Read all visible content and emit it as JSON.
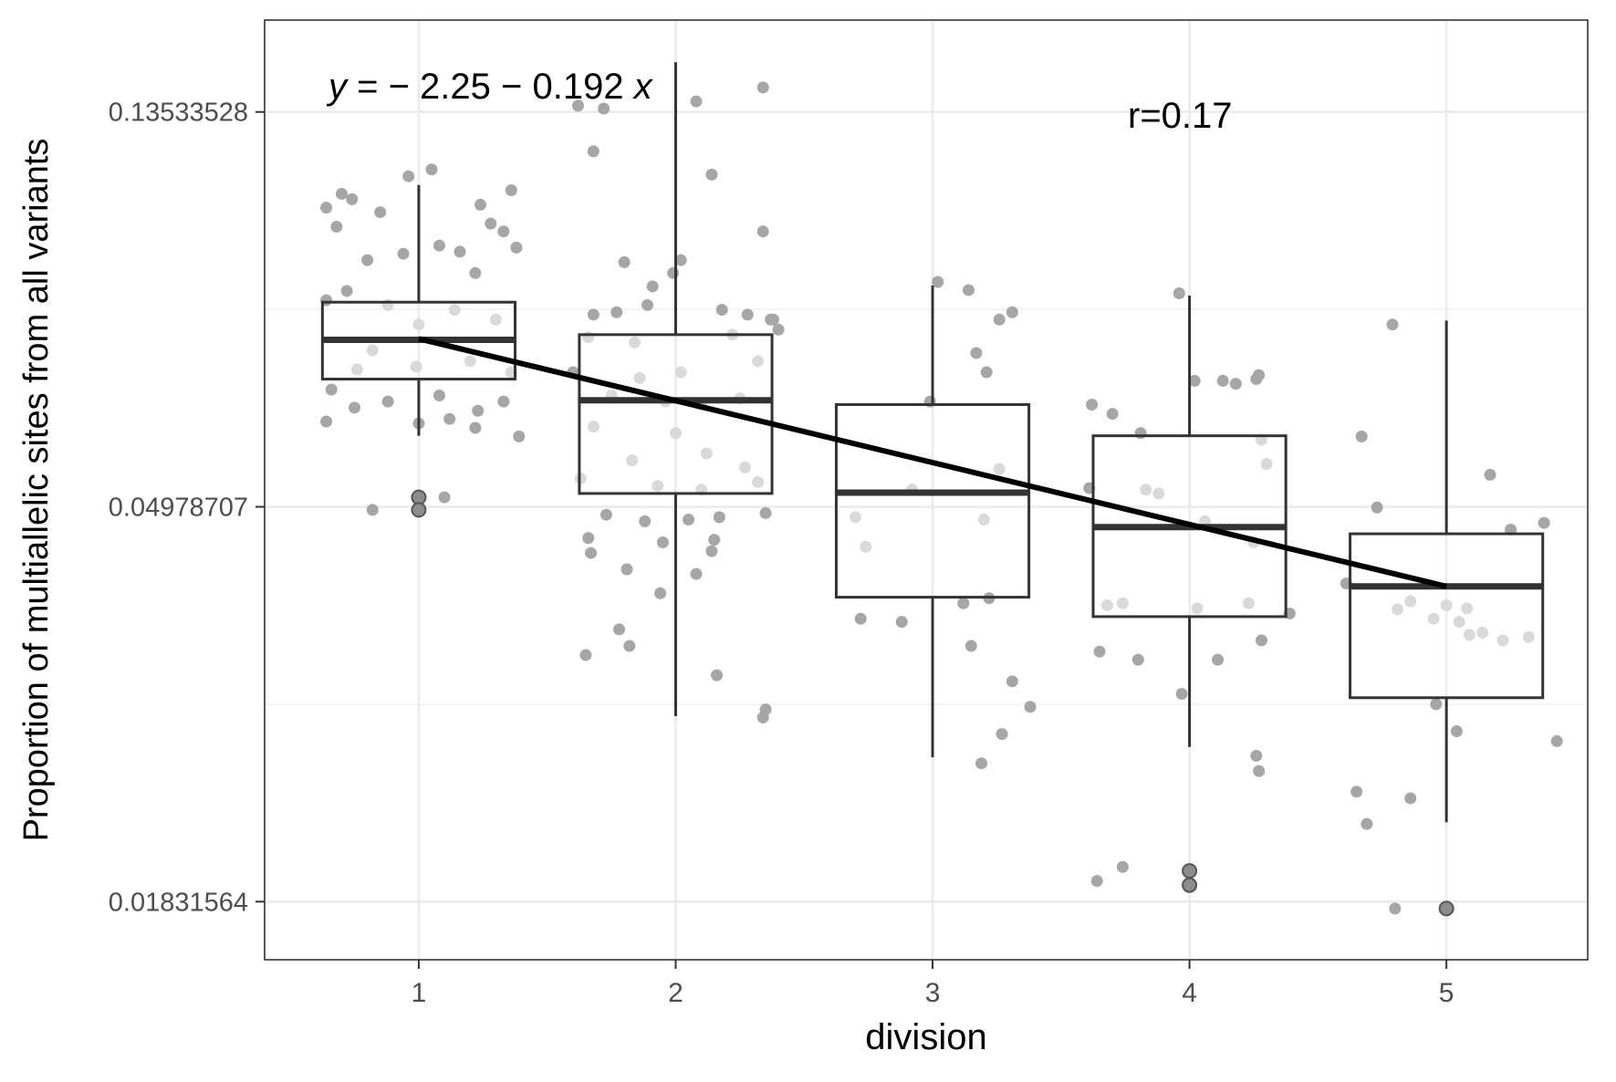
{
  "chart_data": {
    "type": "box",
    "xlabel": "division",
    "ylabel": "Proportion of multiallelic sites from all variants",
    "y_scale": "log",
    "ylim": [
      0.01581,
      0.1708
    ],
    "xlim": [
      0.4,
      5.55
    ],
    "grid": true,
    "categories": [
      "1",
      "2",
      "3",
      "4",
      "5"
    ],
    "y_ticks": [
      {
        "value": 0.13533528,
        "label": "0.13533528"
      },
      {
        "value": 0.04978707,
        "label": "0.04978707"
      },
      {
        "value": 0.01831564,
        "label": "0.01831564"
      }
    ],
    "y_minor_ticks": [
      0.082085,
      0.03019738
    ],
    "colors": {
      "point": "#a6a6a6",
      "point_in_box": "#d9d9d9",
      "box_line": "#333333",
      "fit_line": "#000000",
      "grid": "#ebebeb",
      "panel_border": "#333333"
    },
    "annotations": {
      "equation": {
        "y_text": "y",
        "rest_text": " = − 2.25 − 0.192 ",
        "x_text": "x"
      },
      "r_text": "r=0.17"
    },
    "boxes": [
      {
        "category": "1",
        "median": 0.076,
        "q1": 0.0688,
        "q3": 0.0836,
        "whisker_low": 0.0596,
        "whisker_high": 0.1125,
        "outliers": [
          0.051,
          0.0494
        ]
      },
      {
        "category": "2",
        "median": 0.0652,
        "q1": 0.0515,
        "q3": 0.077,
        "whisker_low": 0.0293,
        "whisker_high": 0.1535,
        "outliers": []
      },
      {
        "category": "3",
        "median": 0.0516,
        "q1": 0.0396,
        "q3": 0.0645,
        "whisker_low": 0.0264,
        "whisker_high": 0.0872,
        "outliers": []
      },
      {
        "category": "4",
        "median": 0.0473,
        "q1": 0.0377,
        "q3": 0.0596,
        "whisker_low": 0.0271,
        "whisker_high": 0.085,
        "outliers": [
          0.0198,
          0.0191
        ]
      },
      {
        "category": "5",
        "median": 0.0407,
        "q1": 0.0307,
        "q3": 0.0465,
        "whisker_low": 0.0224,
        "whisker_high": 0.0798,
        "outliers": [
          0.018
        ]
      }
    ],
    "fit_line": {
      "x": [
        1,
        5
      ],
      "y": [
        0.0762,
        0.0407
      ]
    },
    "jitter_points": [
      {
        "x": 0.7,
        "y": 0.11
      },
      {
        "x": 0.74,
        "y": 0.1085
      },
      {
        "x": 0.64,
        "y": 0.1062
      },
      {
        "x": 0.85,
        "y": 0.105
      },
      {
        "x": 0.96,
        "y": 0.115
      },
      {
        "x": 1.05,
        "y": 0.117
      },
      {
        "x": 1.24,
        "y": 0.107
      },
      {
        "x": 1.36,
        "y": 0.111
      },
      {
        "x": 1.28,
        "y": 0.102
      },
      {
        "x": 1.33,
        "y": 0.1
      },
      {
        "x": 0.68,
        "y": 0.1012
      },
      {
        "x": 1.08,
        "y": 0.0965
      },
      {
        "x": 0.94,
        "y": 0.0945
      },
      {
        "x": 1.16,
        "y": 0.095
      },
      {
        "x": 1.38,
        "y": 0.096
      },
      {
        "x": 0.8,
        "y": 0.093
      },
      {
        "x": 1.22,
        "y": 0.09
      },
      {
        "x": 0.72,
        "y": 0.086
      },
      {
        "x": 0.64,
        "y": 0.084
      },
      {
        "x": 0.88,
        "y": 0.083
      },
      {
        "x": 1.0,
        "y": 0.079
      },
      {
        "x": 1.14,
        "y": 0.082
      },
      {
        "x": 1.3,
        "y": 0.08
      },
      {
        "x": 0.82,
        "y": 0.074
      },
      {
        "x": 1.2,
        "y": 0.072
      },
      {
        "x": 0.76,
        "y": 0.0705
      },
      {
        "x": 0.99,
        "y": 0.071
      },
      {
        "x": 1.36,
        "y": 0.07
      },
      {
        "x": 0.66,
        "y": 0.067
      },
      {
        "x": 0.75,
        "y": 0.064
      },
      {
        "x": 0.88,
        "y": 0.065
      },
      {
        "x": 1.08,
        "y": 0.066
      },
      {
        "x": 1.23,
        "y": 0.0635
      },
      {
        "x": 1.33,
        "y": 0.065
      },
      {
        "x": 0.64,
        "y": 0.0618
      },
      {
        "x": 1.0,
        "y": 0.0615
      },
      {
        "x": 1.12,
        "y": 0.0622
      },
      {
        "x": 1.22,
        "y": 0.0608
      },
      {
        "x": 1.39,
        "y": 0.0595
      },
      {
        "x": 1.1,
        "y": 0.051
      },
      {
        "x": 0.82,
        "y": 0.0494
      },
      {
        "x": 1.62,
        "y": 0.1375
      },
      {
        "x": 1.72,
        "y": 0.1365
      },
      {
        "x": 2.08,
        "y": 0.139
      },
      {
        "x": 2.34,
        "y": 0.144
      },
      {
        "x": 1.68,
        "y": 0.1225
      },
      {
        "x": 2.14,
        "y": 0.1155
      },
      {
        "x": 2.34,
        "y": 0.1
      },
      {
        "x": 1.8,
        "y": 0.0925
      },
      {
        "x": 1.91,
        "y": 0.087
      },
      {
        "x": 1.99,
        "y": 0.09
      },
      {
        "x": 2.02,
        "y": 0.093
      },
      {
        "x": 1.68,
        "y": 0.081
      },
      {
        "x": 1.77,
        "y": 0.0815
      },
      {
        "x": 1.89,
        "y": 0.083
      },
      {
        "x": 2.18,
        "y": 0.082
      },
      {
        "x": 2.28,
        "y": 0.081
      },
      {
        "x": 2.37,
        "y": 0.08
      },
      {
        "x": 1.66,
        "y": 0.0765
      },
      {
        "x": 1.84,
        "y": 0.0755
      },
      {
        "x": 2.22,
        "y": 0.077
      },
      {
        "x": 1.6,
        "y": 0.07
      },
      {
        "x": 1.86,
        "y": 0.069
      },
      {
        "x": 2.02,
        "y": 0.07
      },
      {
        "x": 2.32,
        "y": 0.072
      },
      {
        "x": 1.75,
        "y": 0.066
      },
      {
        "x": 1.96,
        "y": 0.065
      },
      {
        "x": 2.1,
        "y": 0.0645
      },
      {
        "x": 2.25,
        "y": 0.0655
      },
      {
        "x": 1.68,
        "y": 0.061
      },
      {
        "x": 2.0,
        "y": 0.06
      },
      {
        "x": 1.83,
        "y": 0.056
      },
      {
        "x": 2.12,
        "y": 0.057
      },
      {
        "x": 2.27,
        "y": 0.055
      },
      {
        "x": 1.63,
        "y": 0.0535
      },
      {
        "x": 1.93,
        "y": 0.0525
      },
      {
        "x": 2.1,
        "y": 0.052
      },
      {
        "x": 2.32,
        "y": 0.053
      },
      {
        "x": 1.73,
        "y": 0.0488
      },
      {
        "x": 1.88,
        "y": 0.048
      },
      {
        "x": 2.05,
        "y": 0.0482
      },
      {
        "x": 2.17,
        "y": 0.0485
      },
      {
        "x": 2.35,
        "y": 0.049
      },
      {
        "x": 1.66,
        "y": 0.046
      },
      {
        "x": 1.95,
        "y": 0.0455
      },
      {
        "x": 2.15,
        "y": 0.0458
      },
      {
        "x": 1.67,
        "y": 0.0443
      },
      {
        "x": 1.81,
        "y": 0.0425
      },
      {
        "x": 2.08,
        "y": 0.042
      },
      {
        "x": 2.14,
        "y": 0.0445
      },
      {
        "x": 1.94,
        "y": 0.04
      },
      {
        "x": 1.78,
        "y": 0.0365
      },
      {
        "x": 1.65,
        "y": 0.0342
      },
      {
        "x": 1.82,
        "y": 0.035
      },
      {
        "x": 2.16,
        "y": 0.0325
      },
      {
        "x": 2.35,
        "y": 0.0298
      },
      {
        "x": 2.34,
        "y": 0.0292
      },
      {
        "x": 2.38,
        "y": 0.08
      },
      {
        "x": 2.4,
        "y": 0.078
      },
      {
        "x": 3.02,
        "y": 0.088
      },
      {
        "x": 3.14,
        "y": 0.0862
      },
      {
        "x": 3.26,
        "y": 0.08
      },
      {
        "x": 3.31,
        "y": 0.0815
      },
      {
        "x": 3.17,
        "y": 0.0735
      },
      {
        "x": 3.21,
        "y": 0.07
      },
      {
        "x": 2.99,
        "y": 0.065
      },
      {
        "x": 2.7,
        "y": 0.0485
      },
      {
        "x": 2.92,
        "y": 0.052
      },
      {
        "x": 3.26,
        "y": 0.0548
      },
      {
        "x": 3.22,
        "y": 0.0395
      },
      {
        "x": 3.12,
        "y": 0.039
      },
      {
        "x": 2.72,
        "y": 0.0375
      },
      {
        "x": 2.88,
        "y": 0.0372
      },
      {
        "x": 3.15,
        "y": 0.035
      },
      {
        "x": 3.31,
        "y": 0.032
      },
      {
        "x": 3.38,
        "y": 0.03
      },
      {
        "x": 3.27,
        "y": 0.028
      },
      {
        "x": 3.19,
        "y": 0.026
      },
      {
        "x": 2.74,
        "y": 0.045
      },
      {
        "x": 3.2,
        "y": 0.0482
      },
      {
        "x": 3.96,
        "y": 0.0855
      },
      {
        "x": 4.27,
        "y": 0.0695
      },
      {
        "x": 4.26,
        "y": 0.0688
      },
      {
        "x": 4.02,
        "y": 0.0685
      },
      {
        "x": 4.13,
        "y": 0.0685
      },
      {
        "x": 4.18,
        "y": 0.068
      },
      {
        "x": 3.62,
        "y": 0.0645
      },
      {
        "x": 3.7,
        "y": 0.063
      },
      {
        "x": 3.81,
        "y": 0.06
      },
      {
        "x": 4.3,
        "y": 0.0555
      },
      {
        "x": 4.28,
        "y": 0.059
      },
      {
        "x": 3.61,
        "y": 0.0522
      },
      {
        "x": 3.88,
        "y": 0.0515
      },
      {
        "x": 4.06,
        "y": 0.048
      },
      {
        "x": 4.25,
        "y": 0.0455
      },
      {
        "x": 4.39,
        "y": 0.038
      },
      {
        "x": 4.28,
        "y": 0.0355
      },
      {
        "x": 4.23,
        "y": 0.039
      },
      {
        "x": 3.65,
        "y": 0.0345
      },
      {
        "x": 3.8,
        "y": 0.0338
      },
      {
        "x": 4.11,
        "y": 0.0338
      },
      {
        "x": 3.97,
        "y": 0.031
      },
      {
        "x": 4.26,
        "y": 0.0265
      },
      {
        "x": 4.27,
        "y": 0.0255
      },
      {
        "x": 3.74,
        "y": 0.02
      },
      {
        "x": 3.64,
        "y": 0.0193
      },
      {
        "x": 3.68,
        "y": 0.0388
      },
      {
        "x": 3.74,
        "y": 0.039
      },
      {
        "x": 4.03,
        "y": 0.0385
      },
      {
        "x": 3.83,
        "y": 0.052
      },
      {
        "x": 4.79,
        "y": 0.079
      },
      {
        "x": 4.67,
        "y": 0.0595
      },
      {
        "x": 5.17,
        "y": 0.054
      },
      {
        "x": 4.73,
        "y": 0.0497
      },
      {
        "x": 5.25,
        "y": 0.047
      },
      {
        "x": 5.38,
        "y": 0.0478
      },
      {
        "x": 4.61,
        "y": 0.041
      },
      {
        "x": 4.81,
        "y": 0.0384
      },
      {
        "x": 4.95,
        "y": 0.0375
      },
      {
        "x": 5.05,
        "y": 0.0372
      },
      {
        "x": 5.14,
        "y": 0.0362
      },
      {
        "x": 5.22,
        "y": 0.0355
      },
      {
        "x": 5.09,
        "y": 0.036
      },
      {
        "x": 4.96,
        "y": 0.0302
      },
      {
        "x": 5.04,
        "y": 0.0282
      },
      {
        "x": 5.43,
        "y": 0.0275
      },
      {
        "x": 4.65,
        "y": 0.0242
      },
      {
        "x": 4.69,
        "y": 0.0223
      },
      {
        "x": 4.86,
        "y": 0.0238
      },
      {
        "x": 4.8,
        "y": 0.018
      },
      {
        "x": 4.86,
        "y": 0.0392
      },
      {
        "x": 5.0,
        "y": 0.0388
      },
      {
        "x": 5.08,
        "y": 0.0385
      },
      {
        "x": 5.32,
        "y": 0.0358
      }
    ]
  }
}
